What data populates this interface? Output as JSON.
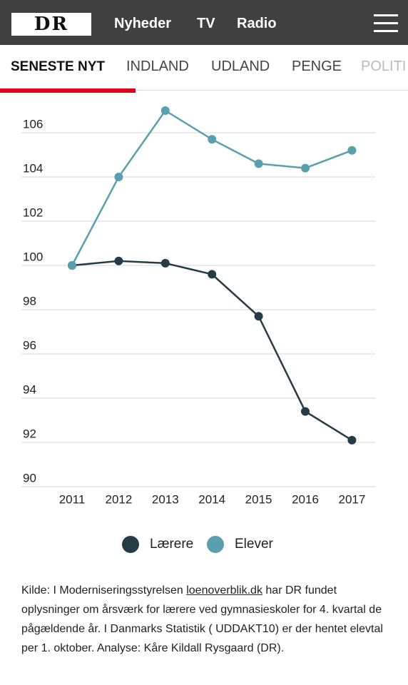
{
  "header": {
    "logo": "DR",
    "nav": [
      "Nyheder",
      "TV",
      "Radio"
    ]
  },
  "tabs": [
    "SENESTE NYT",
    "INDLAND",
    "UDLAND",
    "PENGE",
    "POLITI"
  ],
  "chart_data": {
    "type": "line",
    "categories": [
      "2011",
      "2012",
      "2013",
      "2014",
      "2015",
      "2016",
      "2017"
    ],
    "series": [
      {
        "name": "Lærere",
        "color": "#253c47",
        "values": [
          100,
          100.2,
          100.1,
          99.6,
          97.7,
          93.4,
          92.1
        ]
      },
      {
        "name": "Elever",
        "color": "#5a9fae",
        "values": [
          100,
          104.0,
          107.0,
          105.7,
          104.6,
          104.4,
          105.2
        ]
      }
    ],
    "ylim": [
      90,
      108
    ],
    "yticks": [
      90,
      92,
      94,
      96,
      98,
      100,
      102,
      104,
      106
    ],
    "grid": true,
    "legend": "bottom"
  },
  "source": {
    "before": "Kilde: I Moderniseringsstyrelsen",
    "link": "loenoverblik.dk",
    "after": "har DR fundet oplysninger om årsværk for lærere ved gymnasieskoler  for 4. kvartal de pågældende år. I Danmarks Statistik ( UDDAKT10) er der hentet elevtal per 1. oktober. Analyse: Kåre Kildall Rysgaard (DR)."
  }
}
